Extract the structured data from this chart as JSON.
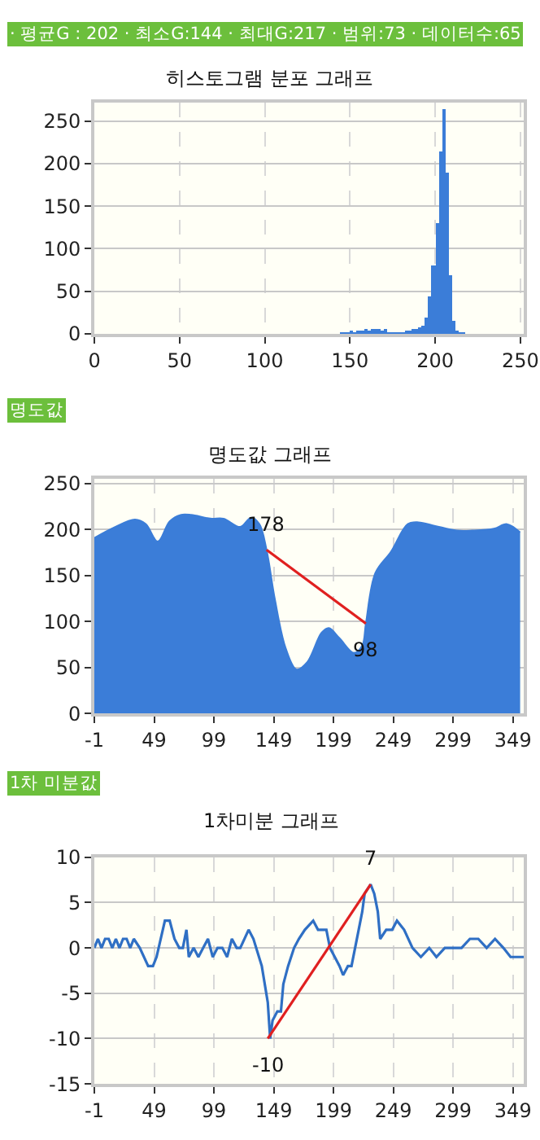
{
  "chart_data": [
    {
      "type": "histogram",
      "title": "히스토그램 분포 그래프",
      "annotations": [
        "· 평균G : 202 · 최소G:144 · 최대G:217 · 범위:73 · 데이터수:65"
      ],
      "bins": [
        144,
        146,
        148,
        150,
        152,
        154,
        156,
        158,
        160,
        162,
        164,
        166,
        168,
        170,
        172,
        174,
        176,
        178,
        180,
        182,
        184,
        186,
        188,
        190,
        192,
        194,
        196,
        198,
        200,
        202,
        204,
        206,
        208,
        210,
        212,
        214,
        216,
        218
      ],
      "values": [
        3,
        3,
        3,
        4,
        3,
        4,
        4,
        5,
        4,
        5,
        6,
        5,
        4,
        6,
        3,
        1,
        3,
        3,
        3,
        4,
        4,
        5,
        6,
        8,
        10,
        20,
        45,
        80,
        130,
        215,
        265,
        190,
        70,
        15,
        4,
        3,
        3
      ],
      "color": "#3b7dd8",
      "xlim": [
        0,
        252
      ],
      "ylim": [
        0,
        272
      ],
      "xticks": [
        0,
        50,
        100,
        150,
        200,
        250
      ],
      "yticks": [
        0,
        50,
        100,
        150,
        200,
        250
      ],
      "grid": true
    },
    {
      "type": "area",
      "title": "명도값 그래프",
      "annotations": [
        "명도값",
        {
          "text": "178",
          "x": 143,
          "y": 178
        },
        {
          "text": "98",
          "x": 226,
          "y": 98
        }
      ],
      "series": [
        {
          "color": "#3b7dd8",
          "x": [
            -1,
            15,
            33,
            42,
            52,
            62,
            71,
            80,
            96,
            107,
            121,
            130,
            137,
            143,
            150,
            159,
            168,
            177,
            189,
            195,
            204,
            216,
            223,
            226,
            234,
            247,
            261,
            270,
            284,
            302,
            315,
            333,
            344,
            355
          ],
          "values": [
            191,
            202,
            211,
            206,
            187,
            209,
            216,
            216,
            212,
            212,
            203,
            213,
            206,
            178,
            124,
            71,
            48,
            56,
            88,
            93,
            82,
            66,
            74,
            98,
            153,
            176,
            206,
            208,
            204,
            199,
            199,
            201,
            206,
            197
          ]
        },
        {
          "type": "line",
          "color": "#e02020",
          "x": [
            143,
            226
          ],
          "values": [
            178,
            98
          ]
        }
      ],
      "xlim": [
        -1,
        358
      ],
      "ylim": [
        0,
        255
      ],
      "xticks": [
        -1,
        49,
        99,
        149,
        199,
        249,
        299,
        349
      ],
      "yticks": [
        0,
        50,
        100,
        150,
        200,
        250
      ],
      "grid": true
    },
    {
      "type": "line",
      "title": "1차미분 그래프",
      "annotations": [
        "1차 미분값",
        {
          "text": "-10",
          "x": 144,
          "y": -10
        },
        {
          "text": "7",
          "x": 230,
          "y": 7
        }
      ],
      "series": [
        {
          "color": "#2f6fc4",
          "x": [
            -1,
            2,
            5,
            8,
            11,
            14,
            17,
            20,
            23,
            26,
            29,
            32,
            37,
            44,
            48,
            51,
            58,
            62,
            66,
            70,
            73,
            76,
            78,
            82,
            86,
            90,
            94,
            98,
            102,
            106,
            110,
            114,
            118,
            121,
            128,
            132,
            139,
            144,
            146,
            148,
            152,
            155,
            157,
            161,
            166,
            170,
            175,
            182,
            186,
            189,
            193,
            196,
            200,
            204,
            207,
            211,
            214,
            217,
            220,
            223,
            225,
            230,
            233,
            236,
            238,
            243,
            248,
            252,
            258,
            265,
            272,
            279,
            285,
            292,
            299,
            306,
            313,
            320,
            327,
            334,
            341,
            347,
            352,
            358
          ],
          "values": [
            0,
            1,
            0,
            1,
            1,
            0,
            1,
            0,
            1,
            1,
            0,
            1,
            0,
            -2,
            -2,
            -1,
            3,
            3,
            1,
            0,
            0,
            2,
            -1,
            0,
            -1,
            0,
            1,
            -1,
            0,
            0,
            -1,
            1,
            0,
            0,
            2,
            1,
            -2,
            -6,
            -10,
            -8,
            -7,
            -7,
            -4,
            -2,
            0,
            1,
            2,
            3,
            2,
            2,
            2,
            0,
            -1,
            -2,
            -3,
            -2,
            -2,
            0,
            2,
            4,
            6,
            7,
            6,
            4,
            1,
            2,
            2,
            3,
            2,
            0,
            -1,
            0,
            -1,
            0,
            0,
            0,
            1,
            1,
            0,
            1,
            0,
            -1,
            -1,
            -1
          ]
        },
        {
          "type": "line",
          "color": "#e02020",
          "x": [
            144,
            230
          ],
          "values": [
            -10,
            7
          ]
        }
      ],
      "xlim": [
        -1,
        358
      ],
      "ylim": [
        -15,
        10
      ],
      "xticks": [
        -1,
        49,
        99,
        149,
        199,
        249,
        299,
        349
      ],
      "yticks": [
        -15,
        -10,
        -5,
        0,
        5,
        10
      ],
      "grid": true
    }
  ]
}
